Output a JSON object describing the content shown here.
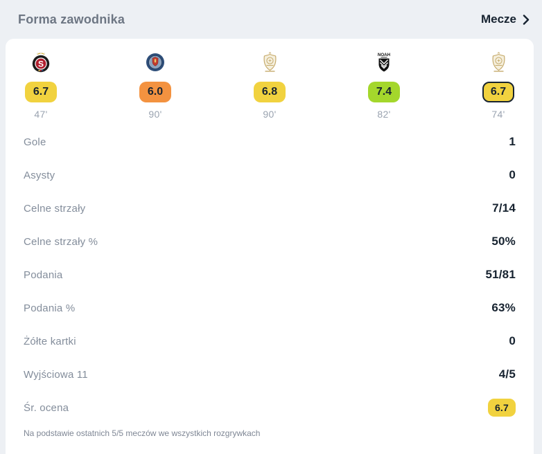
{
  "header": {
    "title": "Forma zawodnika",
    "link_label": "Mecze"
  },
  "matches": [
    {
      "logo": "sparta-crest",
      "rating": "6.7",
      "rating_color": "#f1d23f",
      "minutes": "47'",
      "highlighted": false
    },
    {
      "logo": "blue-round-crest",
      "rating": "6.0",
      "rating_color": "#f39240",
      "minutes": "90'",
      "highlighted": false
    },
    {
      "logo": "gold-cup-crest",
      "rating": "6.8",
      "rating_color": "#f1d23f",
      "minutes": "90'",
      "highlighted": false
    },
    {
      "logo": "noah-crest",
      "rating": "7.4",
      "rating_color": "#a4d72c",
      "minutes": "82'",
      "highlighted": false
    },
    {
      "logo": "gold-cup-crest",
      "rating": "6.7",
      "rating_color": "#f1d23f",
      "minutes": "74'",
      "highlighted": true
    }
  ],
  "stats": [
    {
      "label": "Gole",
      "value": "1"
    },
    {
      "label": "Asysty",
      "value": "0"
    },
    {
      "label": "Celne strzały",
      "value": "7/14"
    },
    {
      "label": "Celne strzały %",
      "value": "50%"
    },
    {
      "label": "Podania",
      "value": "51/81"
    },
    {
      "label": "Podania %",
      "value": "63%"
    },
    {
      "label": "Żółte kartki",
      "value": "0"
    },
    {
      "label": "Wyjściowa 11",
      "value": "4/5"
    },
    {
      "label": "Śr. ocena",
      "value": "6.7",
      "badge": true,
      "badge_color": "#f1d23f"
    }
  ],
  "footer": {
    "note": "Na podstawie ostatnich 5/5 meczów we wszystkich rozgrywkach"
  },
  "colors": {
    "rating_yellow": "#f1d23f",
    "rating_orange": "#f39240",
    "rating_green": "#a4d72c",
    "text_dark": "#172330",
    "text_muted": "#838d9b",
    "background": "#edf0f4",
    "card": "#ffffff"
  }
}
